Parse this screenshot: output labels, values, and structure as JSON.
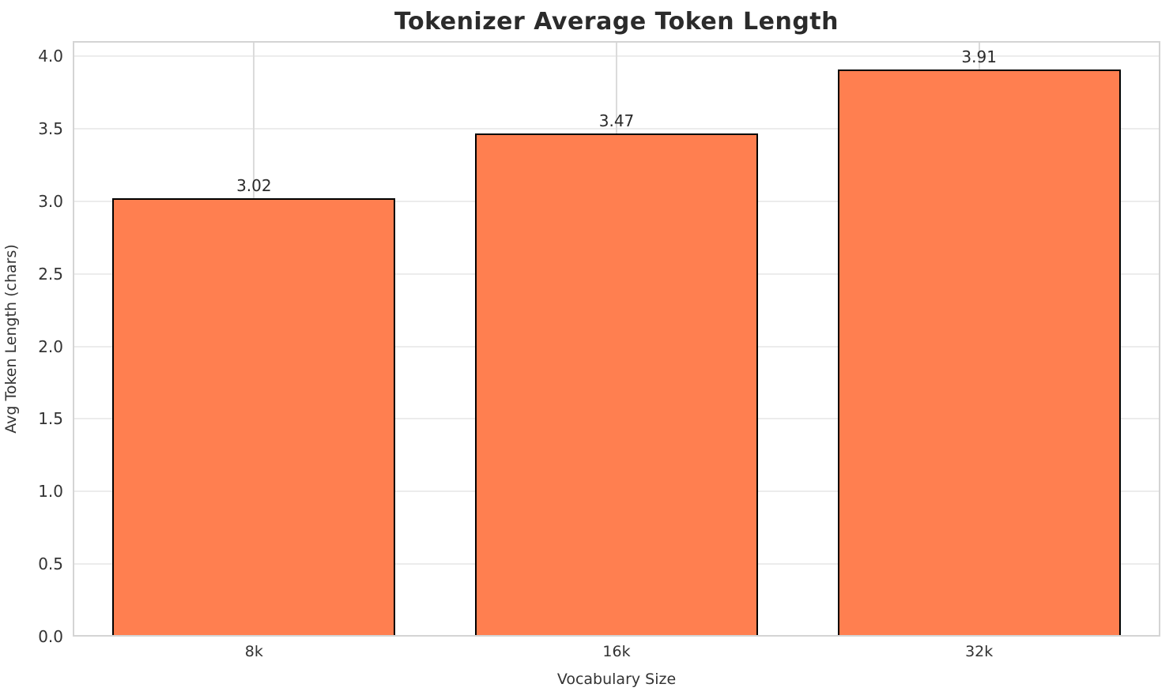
{
  "chart_data": {
    "type": "bar",
    "title": "Tokenizer Average Token Length",
    "xlabel": "Vocabulary Size",
    "ylabel": "Avg Token Length (chars)",
    "categories": [
      "8k",
      "16k",
      "32k"
    ],
    "values": [
      3.02,
      3.47,
      3.91
    ],
    "value_labels": [
      "3.02",
      "3.47",
      "3.91"
    ],
    "yticks": [
      0.0,
      0.5,
      1.0,
      1.5,
      2.0,
      2.5,
      3.0,
      3.5,
      4.0
    ],
    "ytick_labels": [
      "0.0",
      "0.5",
      "1.0",
      "1.5",
      "2.0",
      "2.5",
      "3.0",
      "3.5",
      "4.0"
    ],
    "ylim": [
      0,
      4.105
    ],
    "grid": "horizontal and vertical, light gray, behind bars",
    "legend": "none",
    "colors": {
      "bar_fill": "#FF7F50",
      "bar_edge": "#000000",
      "background": "#FFFFFF",
      "grid_horizontal": "#ECECEC",
      "grid_vertical": "#DBDBDB",
      "spine": "#D4D4D4",
      "title_text": "#2B2B2B",
      "tick_text": "#333333"
    }
  }
}
